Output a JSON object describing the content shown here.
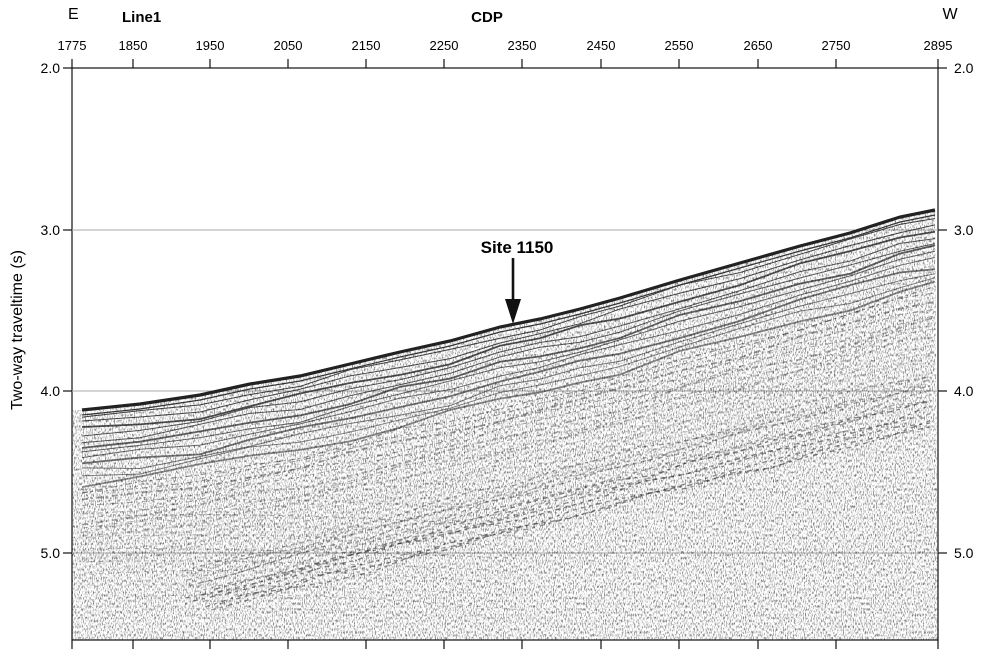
{
  "header": {
    "left_direction": "E",
    "right_direction": "W",
    "line_label": "Line1",
    "cdp_label": "CDP"
  },
  "cdp_axis": {
    "ticks": [
      "1775",
      "1850",
      "1950",
      "2050",
      "2150",
      "2250",
      "2350",
      "2450",
      "2550",
      "2650",
      "2750",
      "2895"
    ]
  },
  "time_axis": {
    "label": "Two-way traveltime (s)",
    "ticks_left": [
      "2.0",
      "3.0",
      "4.0",
      "5.0"
    ],
    "ticks_right": [
      "2.0",
      "3.0",
      "4.0",
      "5.0"
    ]
  },
  "annotation": {
    "site_label": "Site 1150"
  },
  "colors": {
    "seismic_ink": "#222222",
    "gridline": "#aaaaaa",
    "axis": "#111111"
  }
}
